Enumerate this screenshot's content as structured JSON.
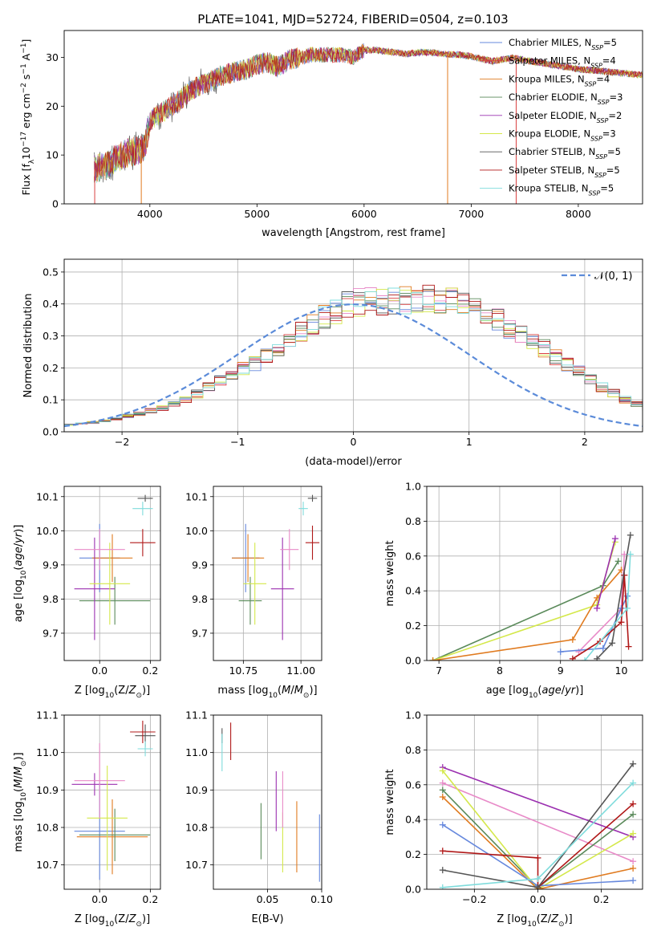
{
  "title": "PLATE=1041, MJD=52724, FIBERID=0504, z=0.103",
  "colors": {
    "Chabrier MILES": "#6688dd",
    "Salpeter MILES": "#d94040",
    "Kroupa MILES": "#e07b20",
    "Chabrier ELODIE": "#5a8a5a",
    "Salpeter ELODIE": "#9b30b0",
    "Kroupa ELODIE": "#d4e84a",
    "Chabrier STELIB": "#555555",
    "Salpeter STELIB": "#b01818",
    "Kroupa STELIB": "#7fdcdc",
    "pink": "#e88ac8",
    "normal_curve": "#5b8bd9"
  },
  "chart_data": [
    {
      "type": "line",
      "panel": "spectrum",
      "xlabel": "wavelength [Angstrom, rest frame]",
      "ylabel": "Flux [fλ10⁻¹⁷ erg cm⁻² s⁻¹ A⁻¹]",
      "xlim": [
        3200,
        8600
      ],
      "ylim": [
        0,
        35.5
      ],
      "xticks": [
        "4000",
        "5000",
        "6000",
        "7000",
        "8000"
      ],
      "yticks": [
        "0",
        "10",
        "20",
        "30"
      ],
      "legend_position": "top-right",
      "continuum": {
        "x": [
          3480,
          3600,
          3700,
          3800,
          3900,
          3950,
          4000,
          4100,
          4200,
          4300,
          4400,
          4500,
          4600,
          4700,
          4800,
          4900,
          5000,
          5100,
          5200,
          5300,
          5400,
          5500,
          5600,
          5700,
          5800,
          5900,
          6000,
          6100,
          6200,
          6300,
          6400,
          6500,
          6600,
          6700,
          6800,
          6900,
          7000,
          7100,
          7200,
          7300,
          7400,
          7500,
          7600,
          7700,
          7800,
          7900,
          8000,
          8100,
          8200,
          8300,
          8400,
          8500,
          8600
        ],
        "y": [
          7,
          8,
          9.5,
          10.5,
          11,
          11.5,
          17,
          18.5,
          20,
          21.5,
          23.5,
          24.5,
          25.5,
          26.5,
          27,
          27.5,
          28.5,
          29,
          28,
          29.5,
          30,
          30.5,
          30.5,
          30.5,
          30.5,
          30,
          31.5,
          31.5,
          31.2,
          31,
          30.7,
          31,
          31,
          30.8,
          30.6,
          30.5,
          30.2,
          29.7,
          29.2,
          29.6,
          29.9,
          29.5,
          29,
          28.7,
          28.3,
          28,
          27.6,
          27.4,
          27.2,
          27,
          26.8,
          26.6,
          26.4
        ]
      },
      "legend": [
        "Chabrier MILES, N_SSP=5",
        "Salpeter MILES, N_SSP=4",
        "Kroupa MILES, N_SSP=4",
        "Chabrier ELODIE, N_SSP=3",
        "Salpeter ELODIE, N_SSP=2",
        "Kroupa ELODIE, N_SSP=3",
        "Chabrier STELIB, N_SSP=5",
        "Salpeter STELIB, N_SSP=5",
        "Kroupa STELIB, N_SSP=5"
      ]
    },
    {
      "type": "bar",
      "panel": "residuals",
      "xlabel": "(data-model)/error",
      "ylabel": "Normed distribution",
      "xlim": [
        -2.5,
        2.5
      ],
      "ylim": [
        0,
        0.54
      ],
      "xticks": [
        "−2",
        "−1",
        "0",
        "1",
        "2"
      ],
      "yticks": [
        "0.0",
        "0.1",
        "0.2",
        "0.3",
        "0.4",
        "0.5"
      ],
      "bin_start": -2.5,
      "bin_width": 0.1,
      "hist_base": [
        0.022,
        0.025,
        0.029,
        0.034,
        0.042,
        0.05,
        0.057,
        0.066,
        0.075,
        0.085,
        0.1,
        0.118,
        0.14,
        0.16,
        0.18,
        0.197,
        0.215,
        0.235,
        0.26,
        0.285,
        0.31,
        0.335,
        0.358,
        0.38,
        0.395,
        0.405,
        0.41,
        0.41,
        0.41,
        0.41,
        0.415,
        0.418,
        0.415,
        0.41,
        0.4,
        0.385,
        0.37,
        0.35,
        0.325,
        0.3,
        0.28,
        0.26,
        0.235,
        0.21,
        0.19,
        0.165,
        0.14,
        0.12,
        0.1,
        0.085,
        0.072,
        0.063,
        0.055,
        0.048,
        0.042,
        0.036,
        0.03,
        0.025,
        0.022,
        0.02
      ],
      "legend": [
        "𝒩(0, 1)"
      ],
      "legend_position": "top-right"
    },
    {
      "type": "scatter",
      "panel": "age-Z",
      "xlabel": "Z [log10(Z/Z⊙)]",
      "ylabel": "age  [log10(age/yr)]",
      "xlim": [
        -0.14,
        0.24
      ],
      "ylim": [
        9.62,
        10.13
      ],
      "xticks": [
        "0.0",
        "0.2"
      ],
      "yticks": [
        "9.7",
        "9.8",
        "9.9",
        "10.0",
        "10.1"
      ],
      "points": [
        {
          "s": "Chabrier MILES",
          "x": 0.0,
          "y": 9.92,
          "xe": 0.08,
          "ye": 0.1
        },
        {
          "s": "Kroupa MILES",
          "x": 0.05,
          "y": 9.92,
          "xe": 0.08,
          "ye": 0.07
        },
        {
          "s": "Chabrier ELODIE",
          "x": 0.06,
          "y": 9.795,
          "xe": 0.14,
          "ye": 0.07
        },
        {
          "s": "Salpeter ELODIE",
          "x": -0.02,
          "y": 9.83,
          "xe": 0.08,
          "ye": 0.15
        },
        {
          "s": "Kroupa ELODIE",
          "x": 0.04,
          "y": 9.845,
          "xe": 0.08,
          "ye": 0.12
        },
        {
          "s": "Chabrier STELIB",
          "x": 0.18,
          "y": 10.095,
          "xe": 0.03,
          "ye": 0.01
        },
        {
          "s": "Salpeter STELIB",
          "x": 0.17,
          "y": 9.965,
          "xe": 0.05,
          "ye": 0.04
        },
        {
          "s": "Kroupa STELIB",
          "x": 0.17,
          "y": 10.065,
          "xe": 0.04,
          "ye": 0.02
        },
        {
          "s": "pink",
          "x": 0.0,
          "y": 9.945,
          "xe": 0.1,
          "ye": 0.06
        }
      ]
    },
    {
      "type": "scatter",
      "panel": "age-mass",
      "xlabel": "mass [log10(M/M⊙)]",
      "ylabel": "",
      "xlim": [
        10.62,
        11.09
      ],
      "ylim": [
        9.62,
        10.13
      ],
      "xticks": [
        "10.75",
        "11.00"
      ],
      "yticks": [
        "9.7",
        "9.8",
        "9.9",
        "10.0",
        "10.1"
      ],
      "points": [
        {
          "s": "Chabrier MILES",
          "x": 10.76,
          "y": 9.92,
          "xe": 0.06,
          "ye": 0.1
        },
        {
          "s": "Kroupa MILES",
          "x": 10.77,
          "y": 9.92,
          "xe": 0.07,
          "ye": 0.07
        },
        {
          "s": "Chabrier ELODIE",
          "x": 10.78,
          "y": 9.795,
          "xe": 0.05,
          "ye": 0.07
        },
        {
          "s": "Salpeter ELODIE",
          "x": 10.92,
          "y": 9.83,
          "xe": 0.05,
          "ye": 0.15
        },
        {
          "s": "Kroupa ELODIE",
          "x": 10.8,
          "y": 9.845,
          "xe": 0.05,
          "ye": 0.12
        },
        {
          "s": "Chabrier STELIB",
          "x": 11.05,
          "y": 10.095,
          "xe": 0.02,
          "ye": 0.01
        },
        {
          "s": "Salpeter STELIB",
          "x": 11.05,
          "y": 9.965,
          "xe": 0.03,
          "ye": 0.05
        },
        {
          "s": "Kroupa STELIB",
          "x": 11.01,
          "y": 10.065,
          "xe": 0.02,
          "ye": 0.02
        },
        {
          "s": "pink",
          "x": 10.95,
          "y": 9.945,
          "xe": 0.04,
          "ye": 0.06
        }
      ]
    },
    {
      "type": "line",
      "panel": "massweight-age",
      "xlabel": "age  [log10(age/yr)]",
      "ylabel": "mass weight",
      "xlim": [
        6.8,
        10.35
      ],
      "ylim": [
        0,
        1
      ],
      "xticks": [
        "7",
        "8",
        "9",
        "10"
      ],
      "yticks": [
        "0.0",
        "0.2",
        "0.4",
        "0.6",
        "0.8",
        "1.0"
      ],
      "series": [
        {
          "s": "Chabrier ELODIE",
          "x": [
            6.9,
            9.7,
            9.95
          ],
          "y": [
            0.0,
            0.43,
            0.57
          ]
        },
        {
          "s": "Kroupa ELODIE",
          "x": [
            6.9,
            9.6,
            9.9
          ],
          "y": [
            0.0,
            0.32,
            0.68
          ]
        },
        {
          "s": "Kroupa MILES",
          "x": [
            6.9,
            9.2,
            9.6,
            10.0
          ],
          "y": [
            0.0,
            0.12,
            0.36,
            0.52
          ]
        },
        {
          "s": "Salpeter ELODIE",
          "x": [
            9.6,
            9.9
          ],
          "y": [
            0.3,
            0.7
          ]
        },
        {
          "s": "pink",
          "x": [
            9.3,
            10.0,
            10.05
          ],
          "y": [
            0.05,
            0.3,
            0.61
          ]
        },
        {
          "s": "Chabrier MILES",
          "x": [
            9.0,
            9.7,
            10.0,
            10.1
          ],
          "y": [
            0.05,
            0.07,
            0.3,
            0.37
          ]
        },
        {
          "s": "Salpeter STELIB",
          "x": [
            9.2,
            9.65,
            10.0,
            10.05,
            10.12
          ],
          "y": [
            0.01,
            0.11,
            0.22,
            0.49,
            0.08
          ]
        },
        {
          "s": "Chabrier STELIB",
          "x": [
            9.6,
            9.85,
            10.15
          ],
          "y": [
            0.01,
            0.1,
            0.72
          ]
        },
        {
          "s": "Kroupa STELIB",
          "x": [
            9.4,
            10.1,
            10.15
          ],
          "y": [
            0.0,
            0.3,
            0.61
          ]
        }
      ]
    },
    {
      "type": "scatter",
      "panel": "mass-Z",
      "xlabel": "Z [log10(Z/Z⊙)]",
      "ylabel": "mass [log10(M/M⊙)]",
      "xlim": [
        -0.14,
        0.24
      ],
      "ylim": [
        10.635,
        11.1
      ],
      "xticks": [
        "0.0",
        "0.2"
      ],
      "yticks": [
        "10.7",
        "10.8",
        "10.9",
        "11.0",
        "11.1"
      ],
      "points": [
        {
          "s": "Chabrier MILES",
          "x": 0.0,
          "y": 10.79,
          "xe": 0.1,
          "ye": 0.13
        },
        {
          "s": "Kroupa MILES",
          "x": 0.05,
          "y": 10.775,
          "xe": 0.14,
          "ye": 0.1
        },
        {
          "s": "Chabrier ELODIE",
          "x": 0.06,
          "y": 10.78,
          "xe": 0.14,
          "ye": 0.07
        },
        {
          "s": "Salpeter ELODIE",
          "x": -0.02,
          "y": 10.915,
          "xe": 0.09,
          "ye": 0.03
        },
        {
          "s": "Kroupa ELODIE",
          "x": 0.03,
          "y": 10.825,
          "xe": 0.08,
          "ye": 0.14
        },
        {
          "s": "Chabrier STELIB",
          "x": 0.18,
          "y": 11.045,
          "xe": 0.04,
          "ye": 0.03
        },
        {
          "s": "Salpeter STELIB",
          "x": 0.17,
          "y": 11.055,
          "xe": 0.05,
          "ye": 0.03
        },
        {
          "s": "Kroupa STELIB",
          "x": 0.18,
          "y": 11.01,
          "xe": 0.03,
          "ye": 0.02
        },
        {
          "s": "pink",
          "x": 0.0,
          "y": 10.925,
          "xe": 0.1,
          "ye": 0.1
        }
      ]
    },
    {
      "type": "scatter",
      "panel": "mass-EBV",
      "xlabel": "E(B-V)",
      "ylabel": "",
      "xlim": [
        0.0,
        0.1
      ],
      "ylim": [
        10.635,
        11.1
      ],
      "xticks": [
        "0.05",
        "0.10"
      ],
      "yticks": [
        "10.7",
        "10.8",
        "10.9",
        "11.0",
        "11.1"
      ],
      "points": [
        {
          "s": "Chabrier MILES",
          "x": 0.098,
          "y": 10.745,
          "xe": 0,
          "ye": 0.09
        },
        {
          "s": "Kroupa MILES",
          "x": 0.077,
          "y": 10.775,
          "xe": 0,
          "ye": 0.095
        },
        {
          "s": "Chabrier ELODIE",
          "x": 0.044,
          "y": 10.79,
          "xe": 0,
          "ye": 0.075
        },
        {
          "s": "Salpeter ELODIE",
          "x": 0.058,
          "y": 10.87,
          "xe": 0,
          "ye": 0.08
        },
        {
          "s": "Kroupa ELODIE",
          "x": 0.064,
          "y": 10.76,
          "xe": 0,
          "ye": 0.08
        },
        {
          "s": "Chabrier STELIB",
          "x": 0.008,
          "y": 11.045,
          "xe": 0,
          "ye": 0.02
        },
        {
          "s": "Salpeter STELIB",
          "x": 0.016,
          "y": 11.03,
          "xe": 0,
          "ye": 0.05
        },
        {
          "s": "Kroupa STELIB",
          "x": 0.008,
          "y": 11.0,
          "xe": 0,
          "ye": 0.05
        },
        {
          "s": "pink",
          "x": 0.064,
          "y": 10.875,
          "xe": 0,
          "ye": 0.075
        }
      ]
    },
    {
      "type": "line",
      "panel": "massweight-Z",
      "xlabel": "Z [log10(Z/Z⊙)]",
      "ylabel": "mass weight",
      "xlim": [
        -0.35,
        0.33
      ],
      "ylim": [
        0,
        1
      ],
      "xticks": [
        "−0.2",
        "0.0",
        "0.2"
      ],
      "yticks": [
        "0.0",
        "0.2",
        "0.4",
        "0.6",
        "0.8",
        "1.0"
      ],
      "series": [
        {
          "s": "Salpeter ELODIE",
          "x": [
            -0.3,
            0.3
          ],
          "y": [
            0.7,
            0.3
          ]
        },
        {
          "s": "pink",
          "x": [
            -0.3,
            0.3
          ],
          "y": [
            0.61,
            0.16
          ]
        },
        {
          "s": "Chabrier ELODIE",
          "x": [
            -0.3,
            0.0,
            0.3
          ],
          "y": [
            0.57,
            0.01,
            0.43
          ]
        },
        {
          "s": "Kroupa ELODIE",
          "x": [
            -0.3,
            0.0,
            0.3
          ],
          "y": [
            0.68,
            0.0,
            0.32
          ]
        },
        {
          "s": "Kroupa MILES",
          "x": [
            -0.3,
            0.0,
            0.3
          ],
          "y": [
            0.53,
            0.0,
            0.12
          ]
        },
        {
          "s": "Chabrier MILES",
          "x": [
            -0.3,
            0.0,
            0.3
          ],
          "y": [
            0.37,
            0.02,
            0.05
          ]
        },
        {
          "s": "Salpeter STELIB",
          "x": [
            -0.3,
            0.0,
            0.0,
            0.3
          ],
          "y": [
            0.22,
            0.18,
            0.01,
            0.49
          ]
        },
        {
          "s": "Chabrier STELIB",
          "x": [
            -0.3,
            0.0,
            0.3
          ],
          "y": [
            0.11,
            0.01,
            0.72
          ]
        },
        {
          "s": "Kroupa STELIB",
          "x": [
            -0.3,
            0.0,
            0.3
          ],
          "y": [
            0.01,
            0.06,
            0.61
          ]
        }
      ]
    }
  ]
}
